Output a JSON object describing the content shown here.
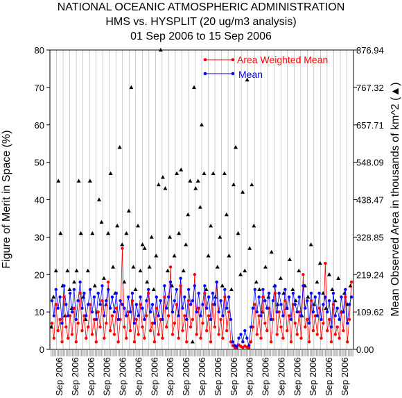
{
  "chart_data": {
    "type": "line",
    "title": "NATIONAL OCEANIC ATMOSPHERIC ADMINISTRATION",
    "subtitle1": "HMS vs. HYSPLIT (20 ug/m3 analysis)",
    "subtitle2": "01 Sep 2006 to 15 Sep 2006",
    "ylabel": "Figure of Merit in Space (%)",
    "y2label": "Mean Observed Area in thousands of km^2 (▲)",
    "ylim": [
      0,
      80
    ],
    "y2lim": [
      0,
      876.94
    ],
    "yticks": [
      "0",
      "10",
      "20",
      "30",
      "40",
      "50",
      "60",
      "70",
      "80"
    ],
    "y2ticks": [
      "0.00",
      "109.62",
      "219.24",
      "328.85",
      "438.47",
      "548.09",
      "657.71",
      "767.32",
      "876.94"
    ],
    "xtick_labels": [
      "Sep 2006",
      "Sep 2006",
      "Sep 2006",
      "Sep 2006",
      "Sep 2006",
      "Sep 2006",
      "Sep 2006",
      "Sep 2006",
      "Sep 2006",
      "Sep 2006",
      "Sep 2006",
      "Sep 2006",
      "Sep 2006",
      "Sep 2006",
      "Sep 2006",
      "Sep 2006",
      "Sep 2006",
      "Sep 2006",
      "Sep 2006"
    ],
    "grid": true,
    "legend_position": "top-right",
    "series": [
      {
        "name": "Area Weighted Mean",
        "color": "#ff0000",
        "marker": "circle",
        "values": [
          7,
          3,
          12,
          5,
          8,
          2,
          14,
          6,
          3,
          9,
          4,
          11,
          2,
          7,
          15,
          5,
          9,
          3,
          6,
          12,
          4,
          8,
          2,
          10,
          6,
          13,
          3,
          7,
          18,
          5,
          9,
          4,
          11,
          2,
          8,
          27,
          6,
          3,
          10,
          5,
          13,
          2,
          8,
          4,
          12,
          6,
          3,
          9,
          15,
          5,
          7,
          2,
          11,
          4,
          8,
          3,
          14,
          6,
          9,
          22,
          4,
          7,
          12,
          3,
          17,
          5,
          9,
          2,
          13,
          6,
          8,
          20,
          4,
          11,
          3,
          7,
          15,
          5,
          9,
          2,
          12,
          6,
          18,
          4,
          8,
          3,
          14,
          5,
          10,
          2,
          1,
          0.5,
          0.4,
          1.2,
          0.8,
          0.5,
          0.9,
          0.6,
          0.4,
          2,
          6,
          12,
          4,
          9,
          3,
          14,
          7,
          5,
          11,
          2,
          8,
          15,
          4,
          10,
          6,
          3,
          13,
          5,
          9,
          2,
          12,
          7,
          4,
          10,
          3,
          20,
          6,
          8,
          2,
          13,
          5,
          9,
          4,
          11,
          3,
          7,
          23,
          5,
          8,
          2,
          12,
          4,
          6,
          3,
          10,
          5,
          14,
          2,
          8,
          18
        ]
      },
      {
        "name": "Mean",
        "color": "#0000ff",
        "marker": "circle",
        "values": [
          13,
          9,
          16,
          11,
          14,
          7,
          17,
          12,
          9,
          15,
          10,
          16,
          8,
          13,
          18,
          11,
          15,
          9,
          12,
          16,
          10,
          14,
          8,
          15,
          12,
          17,
          9,
          13,
          16,
          11,
          14,
          10,
          15,
          8,
          13,
          12,
          11,
          9,
          14,
          10,
          15,
          7,
          12,
          9,
          14,
          11,
          8,
          13,
          16,
          10,
          12,
          7,
          14,
          9,
          13,
          8,
          17,
          11,
          14,
          18,
          10,
          13,
          16,
          9,
          19,
          11,
          14,
          8,
          16,
          12,
          13,
          17,
          10,
          15,
          9,
          12,
          17,
          11,
          14,
          8,
          15,
          12,
          18,
          10,
          13,
          9,
          16,
          11,
          14,
          8,
          2,
          1,
          0.8,
          3,
          4,
          2,
          5,
          3,
          1,
          6,
          11,
          16,
          10,
          14,
          9,
          16,
          13,
          11,
          15,
          8,
          13,
          17,
          10,
          15,
          12,
          9,
          16,
          11,
          14,
          8,
          15,
          12,
          10,
          14,
          9,
          17,
          11,
          13,
          7,
          15,
          10,
          14,
          9,
          15,
          8,
          12,
          14,
          10,
          13,
          6,
          15,
          9,
          11,
          8,
          14,
          10,
          16,
          7,
          12,
          14
        ]
      }
    ],
    "observed_area_points": [
      {
        "x": 0.005,
        "y": 6
      },
      {
        "x": 0.012,
        "y": 14
      },
      {
        "x": 0.02,
        "y": 21
      },
      {
        "x": 0.028,
        "y": 45
      },
      {
        "x": 0.035,
        "y": 31
      },
      {
        "x": 0.042,
        "y": 17
      },
      {
        "x": 0.05,
        "y": 9
      },
      {
        "x": 0.058,
        "y": 21
      },
      {
        "x": 0.065,
        "y": 16
      },
      {
        "x": 0.072,
        "y": 11
      },
      {
        "x": 0.08,
        "y": 18
      },
      {
        "x": 0.088,
        "y": 21
      },
      {
        "x": 0.095,
        "y": 45
      },
      {
        "x": 0.102,
        "y": 31
      },
      {
        "x": 0.11,
        "y": 14
      },
      {
        "x": 0.118,
        "y": 8
      },
      {
        "x": 0.125,
        "y": 21
      },
      {
        "x": 0.132,
        "y": 45
      },
      {
        "x": 0.14,
        "y": 31
      },
      {
        "x": 0.148,
        "y": 17
      },
      {
        "x": 0.155,
        "y": 10
      },
      {
        "x": 0.162,
        "y": 40
      },
      {
        "x": 0.17,
        "y": 34
      },
      {
        "x": 0.178,
        "y": 19
      },
      {
        "x": 0.185,
        "y": 12
      },
      {
        "x": 0.192,
        "y": 31
      },
      {
        "x": 0.2,
        "y": 47
      },
      {
        "x": 0.208,
        "y": 22
      },
      {
        "x": 0.215,
        "y": 15
      },
      {
        "x": 0.222,
        "y": 33
      },
      {
        "x": 0.23,
        "y": 54
      },
      {
        "x": 0.238,
        "y": 28
      },
      {
        "x": 0.245,
        "y": 18
      },
      {
        "x": 0.252,
        "y": 31
      },
      {
        "x": 0.26,
        "y": 37
      },
      {
        "x": 0.268,
        "y": 70
      },
      {
        "x": 0.275,
        "y": 22
      },
      {
        "x": 0.282,
        "y": 16
      },
      {
        "x": 0.29,
        "y": 33
      },
      {
        "x": 0.298,
        "y": 21
      },
      {
        "x": 0.305,
        "y": 28
      },
      {
        "x": 0.312,
        "y": 27
      },
      {
        "x": 0.32,
        "y": 18
      },
      {
        "x": 0.328,
        "y": 22
      },
      {
        "x": 0.335,
        "y": 30
      },
      {
        "x": 0.342,
        "y": 16
      },
      {
        "x": 0.35,
        "y": 25
      },
      {
        "x": 0.358,
        "y": 44
      },
      {
        "x": 0.365,
        "y": 80
      },
      {
        "x": 0.372,
        "y": 46
      },
      {
        "x": 0.38,
        "y": 43
      },
      {
        "x": 0.388,
        "y": 21
      },
      {
        "x": 0.395,
        "y": 30
      },
      {
        "x": 0.402,
        "y": 17
      },
      {
        "x": 0.41,
        "y": 25
      },
      {
        "x": 0.418,
        "y": 47
      },
      {
        "x": 0.425,
        "y": 31
      },
      {
        "x": 0.432,
        "y": 48
      },
      {
        "x": 0.44,
        "y": 21
      },
      {
        "x": 0.448,
        "y": 28
      },
      {
        "x": 0.455,
        "y": 36
      },
      {
        "x": 0.462,
        "y": 45
      },
      {
        "x": 0.47,
        "y": 2
      },
      {
        "x": 0.475,
        "y": 70
      },
      {
        "x": 0.48,
        "y": 43
      },
      {
        "x": 0.488,
        "y": 45
      },
      {
        "x": 0.495,
        "y": 38
      },
      {
        "x": 0.5,
        "y": 60
      },
      {
        "x": 0.508,
        "y": 47
      },
      {
        "x": 0.515,
        "y": 16
      },
      {
        "x": 0.522,
        "y": 25
      },
      {
        "x": 0.53,
        "y": 33
      },
      {
        "x": 0.538,
        "y": 47
      },
      {
        "x": 0.545,
        "y": 14
      },
      {
        "x": 0.552,
        "y": 22
      },
      {
        "x": 0.56,
        "y": 30
      },
      {
        "x": 0.568,
        "y": 17
      },
      {
        "x": 0.575,
        "y": 47
      },
      {
        "x": 0.582,
        "y": 36
      },
      {
        "x": 0.59,
        "y": 25
      },
      {
        "x": 0.598,
        "y": 16
      },
      {
        "x": 0.605,
        "y": 44
      },
      {
        "x": 0.612,
        "y": 54
      },
      {
        "x": 0.62,
        "y": 31
      },
      {
        "x": 0.628,
        "y": 20
      },
      {
        "x": 0.635,
        "y": 42
      },
      {
        "x": 0.642,
        "y": 21
      },
      {
        "x": 0.65,
        "y": 72
      },
      {
        "x": 0.658,
        "y": 27
      },
      {
        "x": 0.665,
        "y": 44
      },
      {
        "x": 0.672,
        "y": 33
      },
      {
        "x": 0.68,
        "y": 18
      },
      {
        "x": 0.69,
        "y": 16
      },
      {
        "x": 0.7,
        "y": 10
      },
      {
        "x": 0.71,
        "y": 22
      },
      {
        "x": 0.72,
        "y": 14
      },
      {
        "x": 0.73,
        "y": 26
      },
      {
        "x": 0.74,
        "y": 17
      },
      {
        "x": 0.75,
        "y": 12
      },
      {
        "x": 0.76,
        "y": 19
      },
      {
        "x": 0.77,
        "y": 15
      },
      {
        "x": 0.78,
        "y": 11
      },
      {
        "x": 0.79,
        "y": 24
      },
      {
        "x": 0.8,
        "y": 16
      },
      {
        "x": 0.81,
        "y": 13
      },
      {
        "x": 0.82,
        "y": 21
      },
      {
        "x": 0.83,
        "y": 9
      },
      {
        "x": 0.84,
        "y": 17
      },
      {
        "x": 0.85,
        "y": 14
      },
      {
        "x": 0.86,
        "y": 28
      },
      {
        "x": 0.87,
        "y": 12
      },
      {
        "x": 0.88,
        "y": 18
      },
      {
        "x": 0.89,
        "y": 23
      },
      {
        "x": 0.9,
        "y": 15
      },
      {
        "x": 0.91,
        "y": 11
      },
      {
        "x": 0.92,
        "y": 20
      },
      {
        "x": 0.93,
        "y": 16
      },
      {
        "x": 0.94,
        "y": 13
      },
      {
        "x": 0.95,
        "y": 19
      },
      {
        "x": 0.96,
        "y": 10
      },
      {
        "x": 0.97,
        "y": 15
      },
      {
        "x": 0.98,
        "y": 12
      },
      {
        "x": 0.99,
        "y": 17
      }
    ]
  }
}
